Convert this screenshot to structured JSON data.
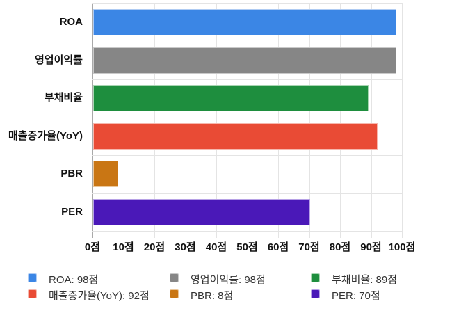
{
  "chart": {
    "background": "#ffffff",
    "axis_color": "#a9a9a9",
    "grid_color": "#e4e4e4",
    "label_color": "#111111",
    "legend_text_color": "#333333"
  },
  "chart_data": {
    "type": "bar",
    "orientation": "horizontal",
    "title": "",
    "categories": [
      "ROA",
      "영업이익률",
      "부채비율",
      "매출증가율(YoY)",
      "PBR",
      "PER"
    ],
    "values": [
      98,
      98,
      89,
      92,
      8,
      70
    ],
    "value_unit": "점",
    "colors": [
      "#3B86E5",
      "#868686",
      "#1E8E3E",
      "#E94B35",
      "#C97614",
      "#4A18B8"
    ],
    "border_colors": [
      "#AECBF3",
      "#C9C9C9",
      "#A8D5B2",
      "#F6B7AD",
      "#EBC79B",
      "#B7A1E6"
    ],
    "xlim": [
      0,
      100
    ],
    "x_ticks": [
      0,
      10,
      20,
      30,
      40,
      50,
      60,
      70,
      80,
      90,
      100
    ],
    "x_tick_labels": [
      "0점",
      "10점",
      "20점",
      "30점",
      "40점",
      "50점",
      "60점",
      "70점",
      "80점",
      "90점",
      "100점"
    ],
    "grid": true,
    "legend_position": "bottom",
    "legend_entries": [
      "ROA: 98점",
      "영업이익률: 98점",
      "부채비율: 89점",
      "매출증가율(YoY): 92점",
      "PBR: 8점",
      "PER: 70점"
    ]
  }
}
